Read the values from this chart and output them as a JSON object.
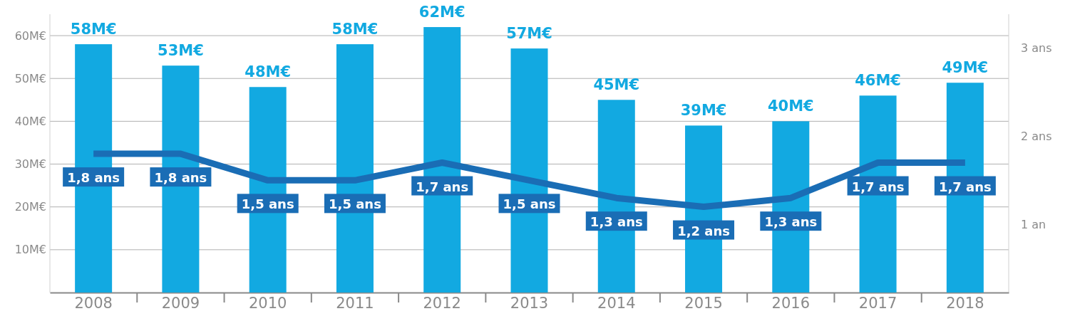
{
  "chart_data": {
    "type": "bar",
    "categories": [
      "2008",
      "2009",
      "2010",
      "2011",
      "2012",
      "2013",
      "2014",
      "2015",
      "2016",
      "2017",
      "2018"
    ],
    "series": [
      {
        "color": "#12a9e1",
        "values": [
          58,
          53,
          48,
          58,
          62,
          57,
          45,
          39,
          40,
          46,
          49
        ],
        "value_labels": [
          "58M€",
          "53M€",
          "48M€",
          "58M€",
          "62M€",
          "57M€",
          "45M€",
          "39M€",
          "40M€",
          "46M€",
          "49M€"
        ]
      },
      {
        "type": "line",
        "axis": "y2",
        "color": "#1a6db5",
        "values": [
          1.8,
          1.8,
          1.5,
          1.5,
          1.7,
          1.5,
          1.3,
          1.2,
          1.3,
          1.7,
          1.7
        ],
        "value_labels": [
          "1,8 ans",
          "1,8 ans",
          "1,5 ans",
          "1,5 ans",
          "1,7 ans",
          "1,5 ans",
          "1,3 ans",
          "1,2 ans",
          "1,3 ans",
          "1,7 ans",
          "1,7 ans"
        ]
      }
    ],
    "ylim": [
      0,
      65
    ],
    "yticks": [
      {
        "value": 10,
        "label": "10M€"
      },
      {
        "value": 20,
        "label": "20M€"
      },
      {
        "value": 30,
        "label": "30M€"
      },
      {
        "value": 40,
        "label": "40M€"
      },
      {
        "value": 50,
        "label": "50M€"
      },
      {
        "value": 60,
        "label": "60M€"
      }
    ],
    "y2lim": [
      0.23,
      3.38
    ],
    "y2ticks": [
      {
        "value": 1,
        "label": "1 an"
      },
      {
        "value": 2,
        "label": "2 ans"
      },
      {
        "value": 3,
        "label": "3 ans"
      }
    ],
    "grid": "y",
    "marker": "none",
    "line_style": "solid"
  }
}
